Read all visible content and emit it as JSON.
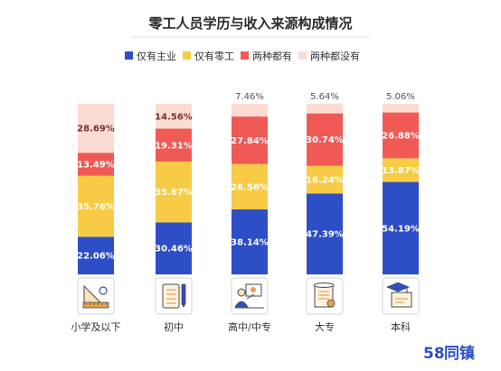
{
  "chart_data": {
    "type": "bar",
    "stacked": true,
    "title": "零工人员学历与收入来源构成情况",
    "categories": [
      "小学及以下",
      "初中",
      "高中/中专",
      "大专",
      "本科"
    ],
    "series": [
      {
        "name": "仅有主业",
        "color": "#2e4ec7",
        "values": [
          22.06,
          30.46,
          38.14,
          47.39,
          54.19
        ],
        "labels": [
          "22.06%",
          "30.46%",
          "38.14%",
          "47.39%",
          "54.19%"
        ]
      },
      {
        "name": "仅有零工",
        "color": "#f7cb45",
        "values": [
          35.76,
          35.67,
          26.56,
          16.24,
          13.87
        ],
        "labels": [
          "35.76%",
          "35.67%",
          "26.56%",
          "16.24%",
          "13.87%"
        ]
      },
      {
        "name": "两种都有",
        "color": "#f05a56",
        "values": [
          13.49,
          19.31,
          27.84,
          30.74,
          26.88
        ],
        "labels": [
          "13.49%",
          "19.31%",
          "27.84%",
          "30.74%",
          "26.88%"
        ]
      },
      {
        "name": "两种都没有",
        "color": "#fbdcd3",
        "values": [
          28.69,
          14.56,
          7.46,
          5.64,
          5.06
        ],
        "labels": [
          "28.69%",
          "14.56%",
          "7.46%",
          "5.64%",
          "5.06%"
        ]
      }
    ],
    "ylim": [
      0,
      100
    ],
    "legend_position": "top",
    "grid": false
  },
  "icons": [
    "ruler-set-icon",
    "notebook-pen-icon",
    "teacher-board-icon",
    "diploma-scroll-icon",
    "graduation-certificate-icon"
  ],
  "logo": {
    "number": "58",
    "text": "同镇"
  }
}
